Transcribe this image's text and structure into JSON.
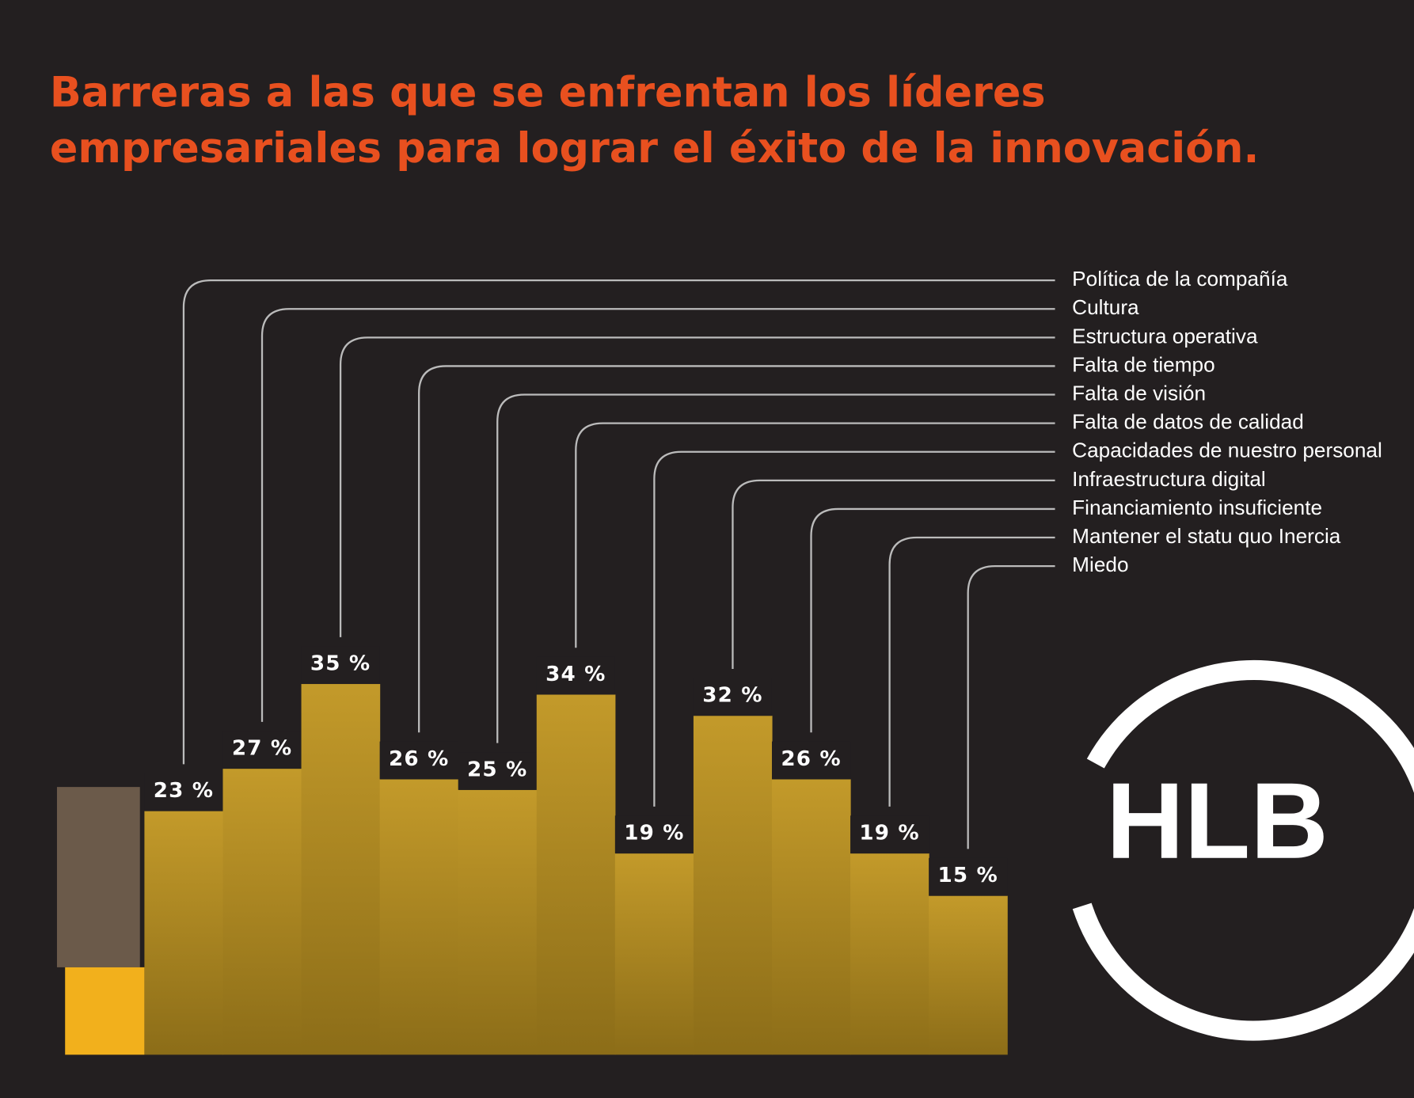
{
  "chart_data": {
    "type": "bar",
    "title": [
      "Barreras a las que se enfrentan los líderes",
      "empresariales para lograr el éxito de la innovación."
    ],
    "categories": [
      "Política de la compañía",
      "Cultura",
      "Estructura operativa",
      "Falta de tiempo",
      "Falta de visión",
      "Falta de datos de calidad",
      "Capacidades de nuestro  personal",
      "Infraestructura digital",
      "Financiamiento insuficiente",
      "Mantener el statu quo Inercia",
      "Miedo"
    ],
    "values": [
      23,
      27,
      35,
      26,
      25,
      34,
      19,
      32,
      26,
      19,
      15
    ],
    "value_labels": [
      "23 %",
      "27 %",
      "35 %",
      "26 %",
      "25 %",
      "34 %",
      "19 %",
      "32 %",
      "26 %",
      "19 %",
      "15 %"
    ],
    "color": "#a88a22"
  },
  "logo": "HLB"
}
